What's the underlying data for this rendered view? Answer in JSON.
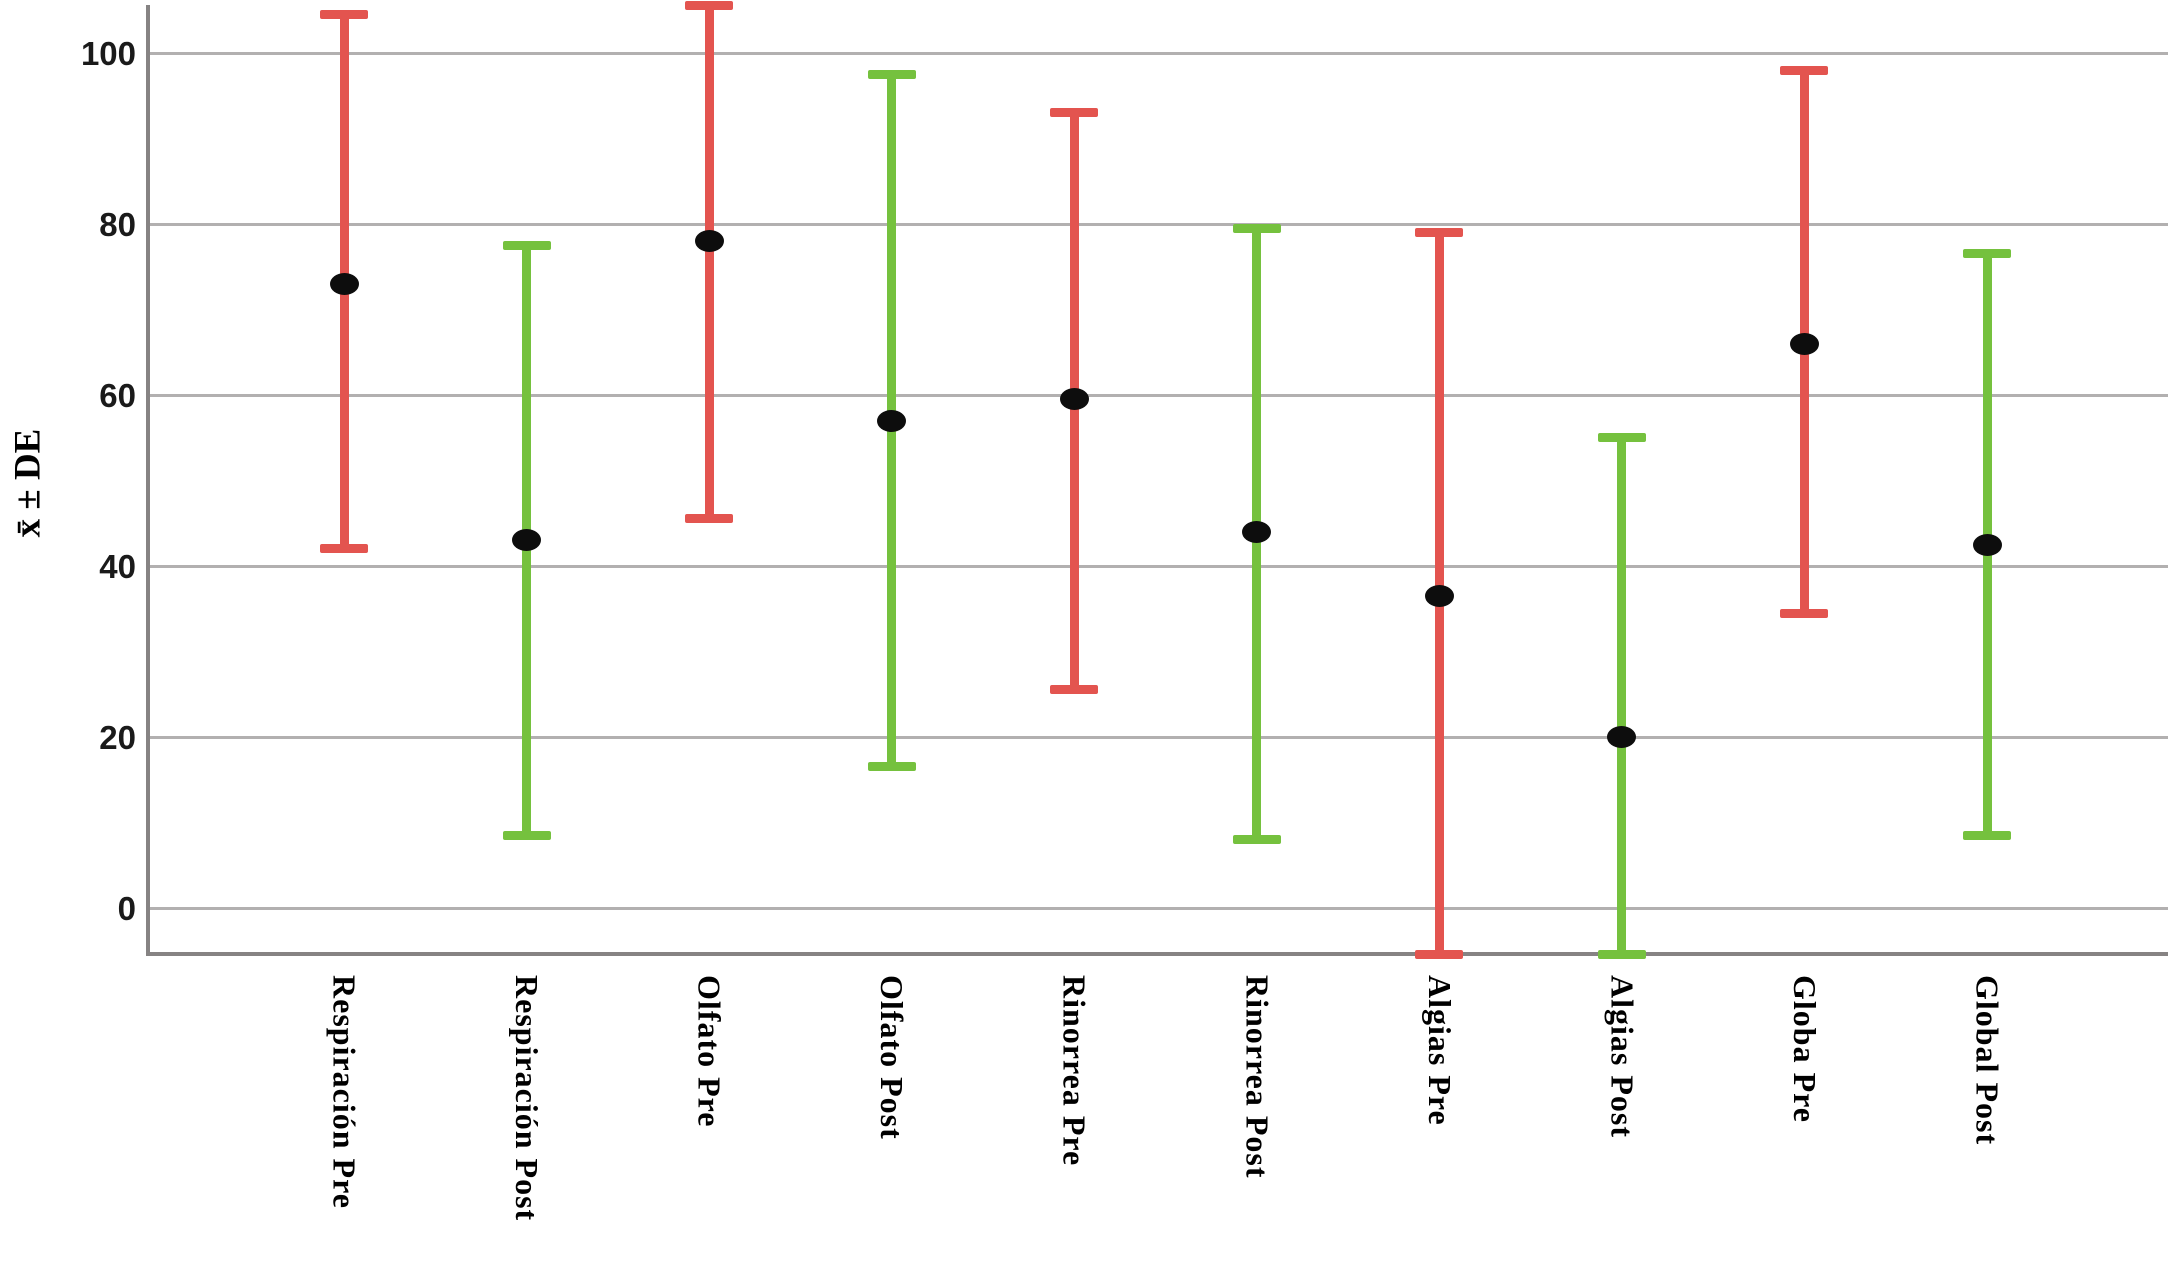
{
  "chart": {
    "ylabel": "x̄ ± DE"
  },
  "chart_data": {
    "type": "errorbar",
    "title": "",
    "xlabel": "",
    "ylabel": "x̄ ± DE",
    "yticks": [
      0,
      20,
      40,
      60,
      80,
      100
    ],
    "ylim": [
      -5.4,
      106
    ],
    "grid": true,
    "legend_position": "none",
    "marker": "black-dot-mean",
    "categories": [
      "Respiración Pre",
      "Respiración Post",
      "Olfato Pre",
      "Olfato Post",
      "Rinorrea Pre",
      "Rinorrea Post",
      "Algias Pre",
      "Algias Post",
      "Globa Pre",
      "Global Post"
    ],
    "series": [
      {
        "category": "Respiración Pre",
        "group": "pre",
        "mean": 73,
        "upper": 104.5,
        "lower": 42,
        "lower_clipped": false
      },
      {
        "category": "Respiración Post",
        "group": "post",
        "mean": 43,
        "upper": 77.5,
        "lower": 8.5,
        "lower_clipped": false
      },
      {
        "category": "Olfato Pre",
        "group": "pre",
        "mean": 78,
        "upper": 105.5,
        "lower": 45.5,
        "lower_clipped": false
      },
      {
        "category": "Olfato Post",
        "group": "post",
        "mean": 57,
        "upper": 97.5,
        "lower": 16.5,
        "lower_clipped": false
      },
      {
        "category": "Rinorrea Pre",
        "group": "pre",
        "mean": 59.5,
        "upper": 93,
        "lower": 25.5,
        "lower_clipped": false
      },
      {
        "category": "Rinorrea Post",
        "group": "post",
        "mean": 44,
        "upper": 79.5,
        "lower": 8,
        "lower_clipped": false
      },
      {
        "category": "Algias Pre",
        "group": "pre",
        "mean": 36.5,
        "upper": 79,
        "lower": -5.4,
        "lower_clipped": true
      },
      {
        "category": "Algias Post",
        "group": "post",
        "mean": 20,
        "upper": 55,
        "lower": -5.4,
        "lower_clipped": true
      },
      {
        "category": "Globa Pre",
        "group": "pre",
        "mean": 66,
        "upper": 98,
        "lower": 34.5,
        "lower_clipped": false
      },
      {
        "category": "Global Post",
        "group": "post",
        "mean": 42.5,
        "upper": 76.5,
        "lower": 8.5,
        "lower_clipped": false
      }
    ],
    "colors": {
      "pre": "#e3544f",
      "post": "#75c13e",
      "marker": "#0d0d0d",
      "gridline": "#b2b0b0",
      "axis": "#868383"
    }
  }
}
